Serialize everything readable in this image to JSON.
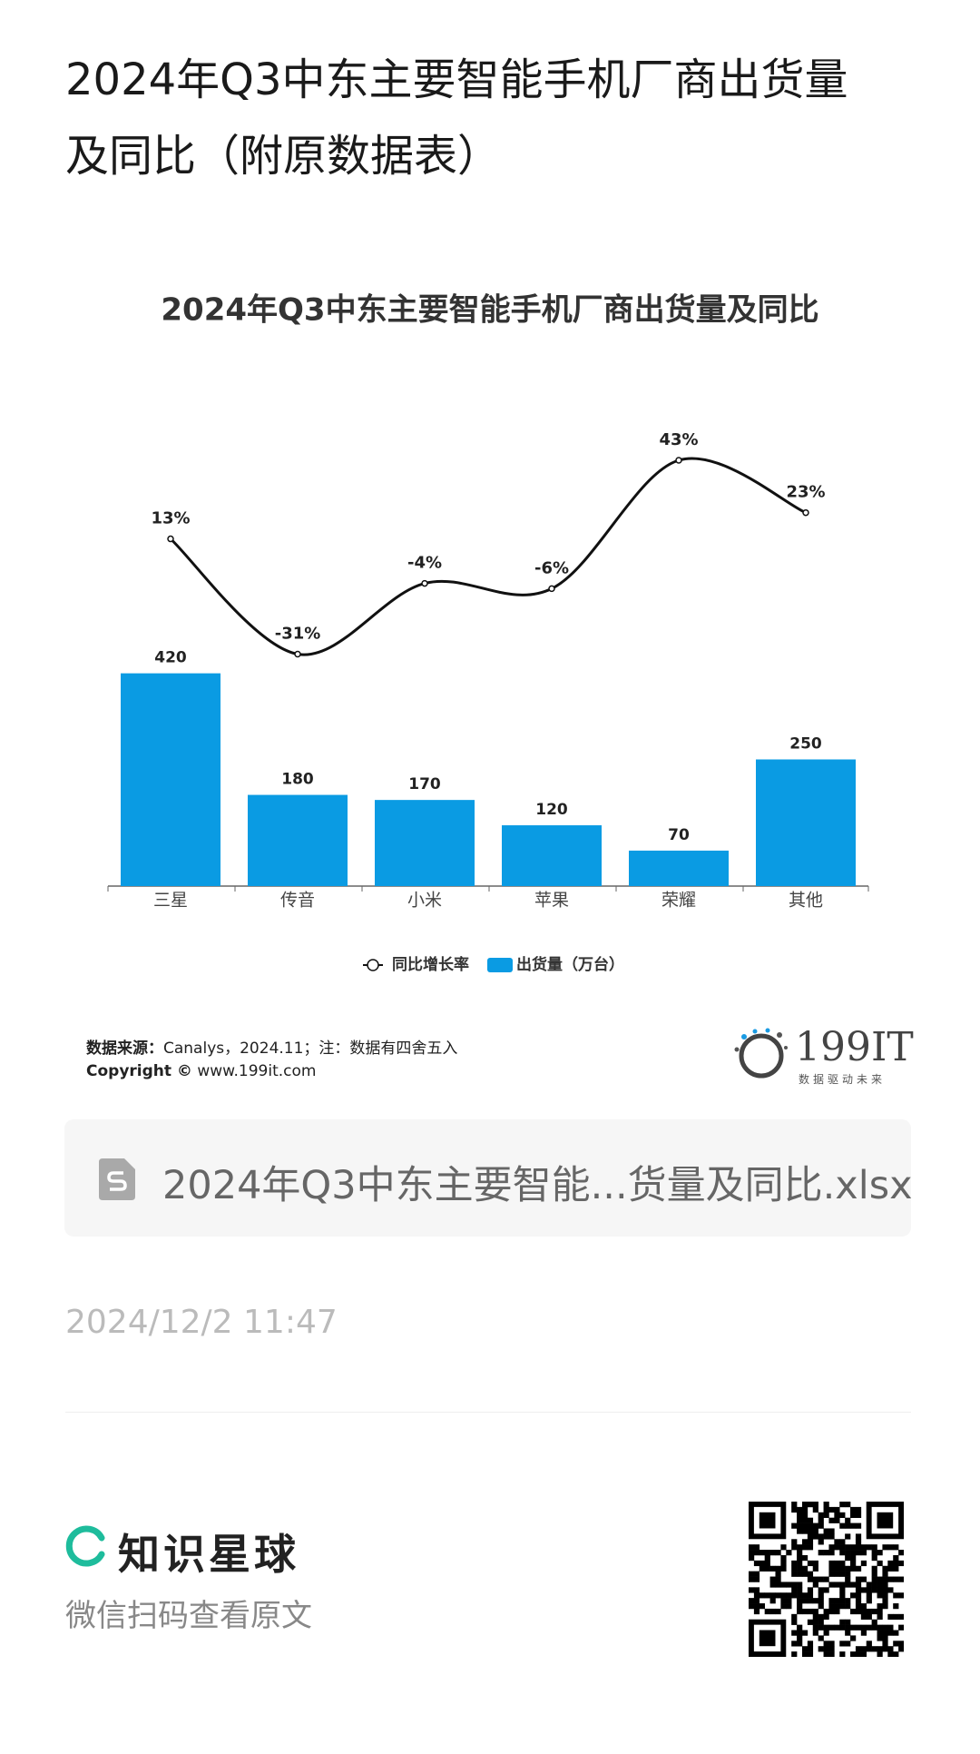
{
  "header": {
    "title_line1": "2024年Q3中东主要智能手机厂商出货量",
    "title_line2": "及同比（附原数据表）"
  },
  "chart_data": {
    "type": "bar_line",
    "title": "2024年Q3中东主要智能手机厂商出货量及同比",
    "categories": [
      "三星",
      "传音",
      "小米",
      "苹果",
      "荣耀",
      "其他"
    ],
    "legend": "bottom",
    "series": [
      {
        "name": "出货量（万台）",
        "type": "bar",
        "color": "#0a9be3",
        "values": [
          420,
          180,
          170,
          120,
          70,
          250
        ]
      },
      {
        "name": "同比增长率",
        "type": "line",
        "axis": "y2",
        "color": "#111111",
        "values": [
          13,
          -31,
          -4,
          -6,
          43,
          23
        ],
        "value_labels": [
          "13%",
          "-31%",
          "-4%",
          "-6%",
          "43%",
          "23%"
        ]
      }
    ]
  },
  "source": {
    "label": "数据来源：",
    "text": "Canalys，2024.11；注：数据有四舍五入",
    "copyright_label": "Copyright ©",
    "copyright_text": "www.199it.com"
  },
  "logo": {
    "name": "199IT",
    "slogan": "数据驱动未来"
  },
  "file": {
    "name": "2024年Q3中东主要智能...货量及同比.xlsx"
  },
  "date": "2024/12/2 11:47",
  "footer": {
    "brand": "知识星球",
    "hint": "微信扫码查看原文"
  }
}
